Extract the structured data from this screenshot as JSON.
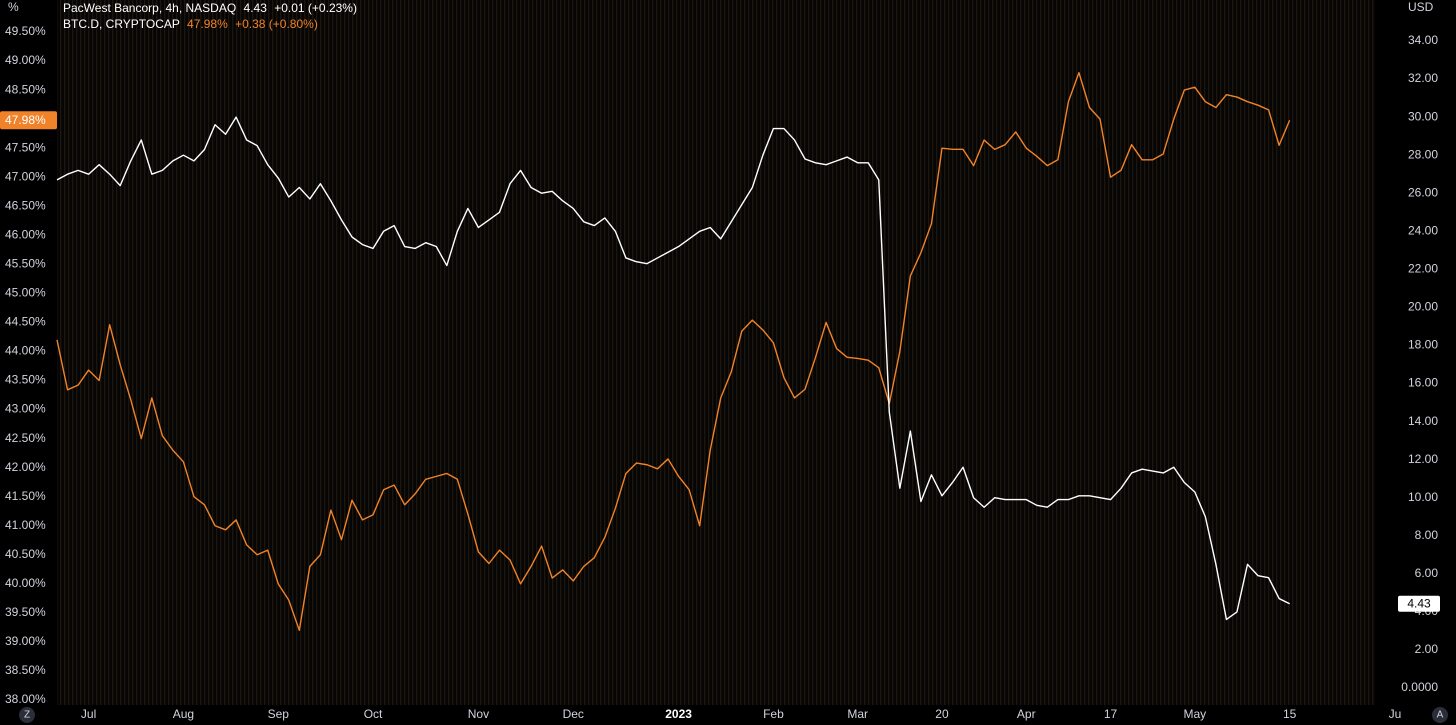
{
  "chart_data": {
    "type": "line",
    "ylabel": "%",
    "y2label": "USD",
    "categories": [
      null,
      null,
      null,
      "Jul",
      null,
      null,
      null,
      null,
      null,
      null,
      null,
      null,
      "Aug",
      null,
      null,
      null,
      null,
      null,
      null,
      null,
      null,
      "Sep",
      null,
      null,
      null,
      null,
      null,
      null,
      null,
      null,
      "Oct",
      null,
      null,
      null,
      null,
      null,
      null,
      null,
      null,
      null,
      "Nov",
      null,
      null,
      null,
      null,
      null,
      null,
      null,
      null,
      "Dec",
      null,
      null,
      null,
      null,
      null,
      null,
      null,
      null,
      null,
      "2023",
      null,
      null,
      null,
      null,
      null,
      null,
      null,
      null,
      "Feb",
      null,
      null,
      null,
      null,
      null,
      null,
      null,
      "Mar",
      null,
      null,
      null,
      null,
      null,
      null,
      null,
      "20",
      null,
      null,
      null,
      null,
      null,
      null,
      null,
      "Apr",
      null,
      null,
      null,
      null,
      null,
      null,
      null,
      "17",
      null,
      null,
      null,
      null,
      null,
      null,
      null,
      "May",
      null,
      null,
      null,
      null,
      null,
      null,
      null,
      null,
      "15",
      null,
      null,
      null,
      null,
      null,
      null,
      null,
      null,
      null,
      "Ju"
    ],
    "series": [
      {
        "name": "BTC.D, CRYPTOCAP",
        "color": "#f0832a",
        "last_label": "47.98%",
        "change_label": "+0.38 (+0.80%)",
        "values": [
          44.2,
          43.34,
          43.42,
          43.68,
          43.5,
          44.46,
          43.77,
          43.17,
          42.5,
          43.2,
          42.55,
          42.3,
          42.1,
          41.5,
          41.36,
          41.0,
          40.93,
          41.1,
          40.67,
          40.5,
          40.58,
          40.0,
          39.72,
          39.2,
          40.3,
          40.5,
          41.27,
          40.76,
          41.44,
          41.1,
          41.19,
          41.62,
          41.7,
          41.36,
          41.55,
          41.8,
          41.85,
          41.9,
          41.8,
          41.2,
          40.55,
          40.35,
          40.58,
          40.41,
          40.0,
          40.3,
          40.65,
          40.1,
          40.24,
          40.05,
          40.3,
          40.45,
          40.8,
          41.3,
          41.9,
          42.08,
          42.05,
          41.98,
          42.15,
          41.85,
          41.62,
          41.0,
          42.3,
          43.2,
          43.65,
          44.35,
          44.54,
          44.37,
          44.15,
          43.55,
          43.2,
          43.35,
          43.9,
          44.5,
          44.05,
          43.9,
          43.88,
          43.85,
          43.72,
          43.1,
          44.0,
          45.3,
          45.7,
          46.2,
          47.5,
          47.48,
          47.48,
          47.2,
          47.64,
          47.48,
          47.56,
          47.78,
          47.5,
          47.36,
          47.2,
          47.3,
          48.3,
          48.8,
          48.2,
          48.0,
          47.0,
          47.12,
          47.56,
          47.3,
          47.3,
          47.4,
          48.0,
          48.5,
          48.55,
          48.3,
          48.2,
          48.42,
          48.38,
          48.3,
          48.24,
          48.16,
          47.55,
          47.98,
          null,
          null,
          null,
          null,
          null,
          null,
          null,
          null,
          null,
          null
        ]
      },
      {
        "name": "PacWest Bancorp, 4h, NASDAQ",
        "color": "#ffffff",
        "axis": "y2",
        "last_label": "4.43",
        "change_label": "+0.01 (+0.23%)",
        "values": [
          26.7,
          27.0,
          27.2,
          27.0,
          27.5,
          27.0,
          26.4,
          27.7,
          28.8,
          27.0,
          27.2,
          27.7,
          28.0,
          27.7,
          28.3,
          29.6,
          29.1,
          30.0,
          28.8,
          28.5,
          27.5,
          26.8,
          25.8,
          26.3,
          25.7,
          26.5,
          25.6,
          24.6,
          23.7,
          23.3,
          23.1,
          24.0,
          24.3,
          23.2,
          23.1,
          23.4,
          23.2,
          22.2,
          24.0,
          25.2,
          24.2,
          24.6,
          25.0,
          26.5,
          27.2,
          26.3,
          26.0,
          26.1,
          25.6,
          25.2,
          24.5,
          24.3,
          24.7,
          24.0,
          22.6,
          22.4,
          22.3,
          22.6,
          22.9,
          23.2,
          23.6,
          24.0,
          24.2,
          23.6,
          24.5,
          25.4,
          26.3,
          28.0,
          29.4,
          29.4,
          28.8,
          27.8,
          27.6,
          27.5,
          27.7,
          27.9,
          27.6,
          27.6,
          26.7,
          14.5,
          10.5,
          13.5,
          9.8,
          11.2,
          10.1,
          10.8,
          11.6,
          10.0,
          9.5,
          10.0,
          9.9,
          9.9,
          9.9,
          9.6,
          9.5,
          9.9,
          9.9,
          10.1,
          10.1,
          10.0,
          9.9,
          10.5,
          11.3,
          11.5,
          11.4,
          11.3,
          11.6,
          10.8,
          10.3,
          9.0,
          6.5,
          3.6,
          4.0,
          6.5,
          5.9,
          5.8,
          4.7,
          4.43,
          null,
          null,
          null,
          null,
          null,
          null,
          null,
          null,
          null,
          null
        ]
      }
    ],
    "ylim": [
      38,
      49.5
    ],
    "yticks": [
      {
        "value": 38.0,
        "label": "38.00%"
      },
      {
        "value": 38.5,
        "label": "38.50%"
      },
      {
        "value": 39.0,
        "label": "39.00%"
      },
      {
        "value": 39.5,
        "label": "39.50%"
      },
      {
        "value": 40.0,
        "label": "40.00%"
      },
      {
        "value": 40.5,
        "label": "40.50%"
      },
      {
        "value": 41.0,
        "label": "41.00%"
      },
      {
        "value": 41.5,
        "label": "41.50%"
      },
      {
        "value": 42.0,
        "label": "42.00%"
      },
      {
        "value": 42.5,
        "label": "42.50%"
      },
      {
        "value": 43.0,
        "label": "43.00%"
      },
      {
        "value": 43.5,
        "label": "43.50%"
      },
      {
        "value": 44.0,
        "label": "44.00%"
      },
      {
        "value": 44.5,
        "label": "44.50%"
      },
      {
        "value": 45.0,
        "label": "45.00%"
      },
      {
        "value": 45.5,
        "label": "45.50%"
      },
      {
        "value": 46.0,
        "label": "46.00%"
      },
      {
        "value": 46.5,
        "label": "46.50%"
      },
      {
        "value": 47.0,
        "label": "47.00%"
      },
      {
        "value": 47.5,
        "label": "47.50%"
      },
      {
        "value": 48.0,
        "label": "48.00%"
      },
      {
        "value": 48.5,
        "label": "48.50%"
      },
      {
        "value": 49.0,
        "label": "49.00%"
      },
      {
        "value": 49.5,
        "label": "49.50%"
      }
    ],
    "y2lim": [
      0,
      34
    ],
    "y2ticks": [
      {
        "value": 0,
        "label": "0.0000"
      },
      {
        "value": 2,
        "label": "2.00"
      },
      {
        "value": 4,
        "label": "4.00"
      },
      {
        "value": 6,
        "label": "6.00"
      },
      {
        "value": 8,
        "label": "8.00"
      },
      {
        "value": 10,
        "label": "10.00"
      },
      {
        "value": 12,
        "label": "12.00"
      },
      {
        "value": 14,
        "label": "14.00"
      },
      {
        "value": 16,
        "label": "16.00"
      },
      {
        "value": 18,
        "label": "18.00"
      },
      {
        "value": 20,
        "label": "20.00"
      },
      {
        "value": 22,
        "label": "22.00"
      },
      {
        "value": 24,
        "label": "24.00"
      },
      {
        "value": 26,
        "label": "26.00"
      },
      {
        "value": 28,
        "label": "28.00"
      },
      {
        "value": 30,
        "label": "30.00"
      },
      {
        "value": 32,
        "label": "32.00"
      },
      {
        "value": 34,
        "label": "34.00"
      }
    ],
    "grid": false,
    "buttons": [
      "Z",
      "A"
    ]
  }
}
